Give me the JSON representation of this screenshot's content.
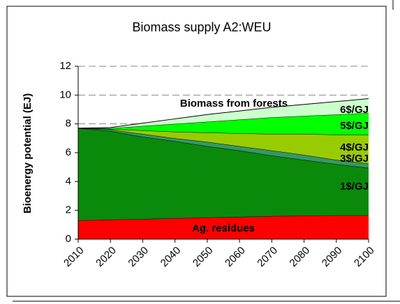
{
  "chart_data": {
    "type": "stacked_area",
    "title": "Biomass supply A2:WEU",
    "y_label": "Bioenergy potential (EJ)",
    "annotations": [
      "Biomass from forests"
    ],
    "x": [
      2010,
      2020,
      2030,
      2040,
      2050,
      2060,
      2070,
      2080,
      2090,
      2100
    ],
    "xlim": [
      2010,
      2100
    ],
    "xticks": [
      2010,
      2020,
      2030,
      2040,
      2050,
      2060,
      2070,
      2080,
      2090,
      2100
    ],
    "ylim": [
      0,
      12
    ],
    "yticks": [
      0,
      2,
      4,
      6,
      8,
      10,
      12
    ],
    "grid": true,
    "series": [
      {
        "name": "Ag. residues",
        "color": "#ff0000",
        "values": [
          1.3,
          1.35,
          1.4,
          1.45,
          1.5,
          1.55,
          1.6,
          1.62,
          1.65,
          1.65
        ]
      },
      {
        "name": "1$/GJ",
        "color": "#0a8a0a",
        "values": [
          6.4,
          6.15,
          5.7,
          5.35,
          4.95,
          4.6,
          4.2,
          3.88,
          3.55,
          3.3
        ]
      },
      {
        "name": "3$/GJ",
        "color": "#339966",
        "values": [
          0,
          0.1,
          0.2,
          0.2,
          0.3,
          0.3,
          0.35,
          0.35,
          0.3,
          0.3
        ]
      },
      {
        "name": "4$/GJ",
        "color": "#99cc00",
        "values": [
          0,
          0.05,
          0.25,
          0.45,
          0.65,
          0.9,
          1.15,
          1.45,
          1.75,
          2.0
        ]
      },
      {
        "name": "5$/GJ",
        "color": "#00ff00",
        "values": [
          0,
          0.05,
          0.3,
          0.55,
          0.75,
          0.95,
          1.15,
          1.25,
          1.4,
          1.5
        ]
      },
      {
        "name": "6$/GJ",
        "color": "#ccffcc",
        "values": [
          0,
          0.05,
          0.2,
          0.35,
          0.5,
          0.6,
          0.7,
          0.8,
          0.9,
          1.0
        ]
      }
    ]
  }
}
